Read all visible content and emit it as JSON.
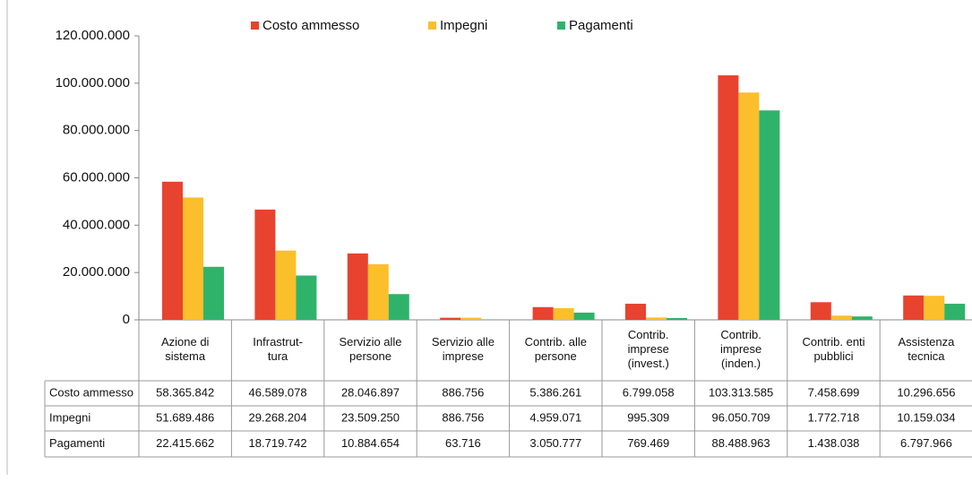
{
  "chart_data": {
    "type": "bar",
    "categories": [
      "Azione di\nsistema",
      "Infrastrut-\ntura",
      "Servizio alle\npersone",
      "Servizio alle\nimprese",
      "Contrib. alle\npersone",
      "Contrib.\nimprese\n(invest.)",
      "Contrib.\nimprese\n(inden.)",
      "Contrib. enti\npubblici",
      "Assistenza\ntecnica"
    ],
    "series": [
      {
        "name": "Costo ammesso",
        "color": "#e8432e",
        "values": [
          58365842,
          46589078,
          28046897,
          886756,
          5386261,
          6799058,
          103313585,
          7458699,
          10296656
        ],
        "value_labels": [
          "58.365.842",
          "46.589.078",
          "28.046.897",
          "886.756",
          "5.386.261",
          "6.799.058",
          "103.313.585",
          "7.458.699",
          "10.296.656"
        ]
      },
      {
        "name": "Impegni",
        "color": "#fbbf2b",
        "values": [
          51689486,
          29268204,
          23509250,
          886756,
          4959071,
          995309,
          96050709,
          1772718,
          10159034
        ],
        "value_labels": [
          "51.689.486",
          "29.268.204",
          "23.509.250",
          "886.756",
          "4.959.071",
          "995.309",
          "96.050.709",
          "1.772.718",
          "10.159.034"
        ]
      },
      {
        "name": "Pagamenti",
        "color": "#2fb36b",
        "values": [
          22415662,
          18719742,
          10884654,
          63716,
          3050777,
          769469,
          88488963,
          1438038,
          6797966
        ],
        "value_labels": [
          "22.415.662",
          "18.719.742",
          "10.884.654",
          "63.716",
          "3.050.777",
          "769.469",
          "88.488.963",
          "1.438.038",
          "6.797.966"
        ]
      }
    ],
    "ylim": [
      0,
      120000000
    ],
    "yticks": [
      0,
      {
        "value": 20000000,
        "label": "20.000.000"
      },
      {
        "value": 40000000,
        "label": "40.000.000"
      },
      {
        "value": 60000000,
        "label": "60.000.000"
      },
      {
        "value": 80000000,
        "label": "80.000.000"
      },
      {
        "value": 100000000,
        "label": "100.000.000"
      },
      {
        "value": 120000000,
        "label": "120.000.000"
      }
    ],
    "legend": "top"
  }
}
